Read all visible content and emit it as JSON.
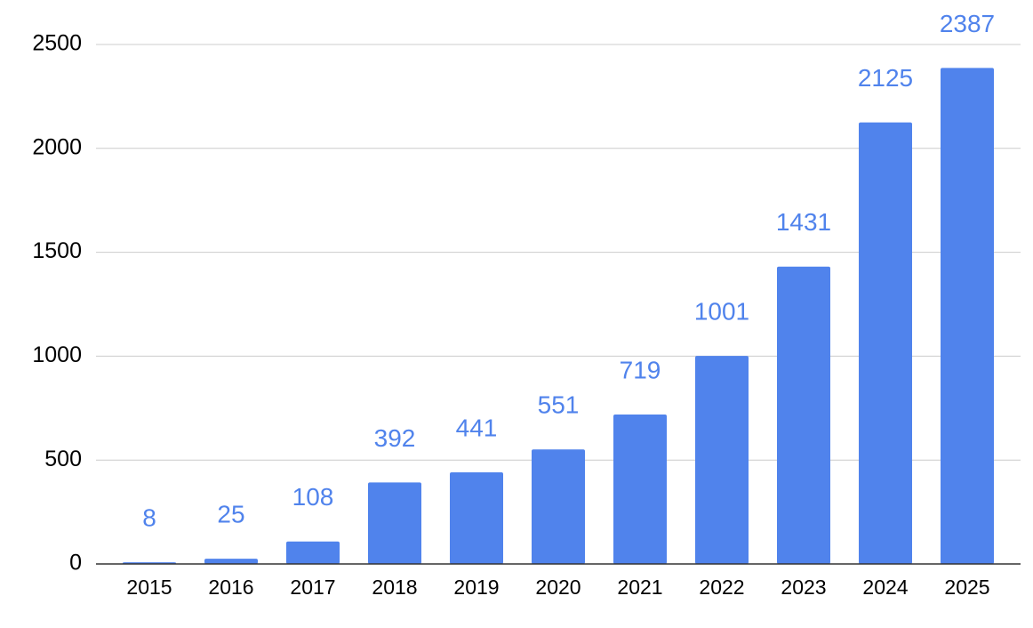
{
  "chart_data": {
    "type": "bar",
    "categories": [
      "2015",
      "2016",
      "2017",
      "2018",
      "2019",
      "2020",
      "2021",
      "2022",
      "2023",
      "2024",
      "2025"
    ],
    "values": [
      8,
      25,
      108,
      392,
      441,
      551,
      719,
      1001,
      1431,
      2125,
      2387
    ],
    "color": "#5083ec",
    "ylim": [
      0,
      2500
    ],
    "yticks": [
      0,
      500,
      1000,
      1500,
      2000,
      2500
    ],
    "grid": true
  }
}
